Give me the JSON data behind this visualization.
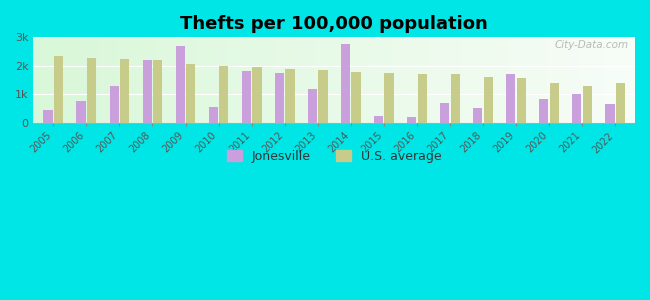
{
  "title": "Thefts per 100,000 population",
  "years": [
    2005,
    2006,
    2007,
    2008,
    2009,
    2010,
    2011,
    2012,
    2013,
    2014,
    2015,
    2016,
    2017,
    2018,
    2019,
    2020,
    2021,
    2022
  ],
  "jonesville": [
    450,
    750,
    1300,
    2200,
    2700,
    550,
    1800,
    1750,
    1200,
    2750,
    220,
    210,
    700,
    500,
    1700,
    820,
    1000,
    650
  ],
  "us_average": [
    2350,
    2280,
    2230,
    2200,
    2050,
    1980,
    1960,
    1900,
    1850,
    1780,
    1760,
    1720,
    1700,
    1610,
    1580,
    1400,
    1290,
    1400
  ],
  "jonesville_color": "#c9a0dc",
  "us_average_color": "#c8cc8a",
  "background_color": "#00e5e5",
  "ylim": [
    0,
    3000
  ],
  "yticks": [
    0,
    1000,
    2000,
    3000
  ],
  "ytick_labels": [
    "0",
    "1k",
    "2k",
    "3k"
  ],
  "bar_width": 0.28,
  "title_fontsize": 13,
  "legend_labels": [
    "Jonesville",
    "U.S. average"
  ],
  "watermark": "City-Data.com"
}
